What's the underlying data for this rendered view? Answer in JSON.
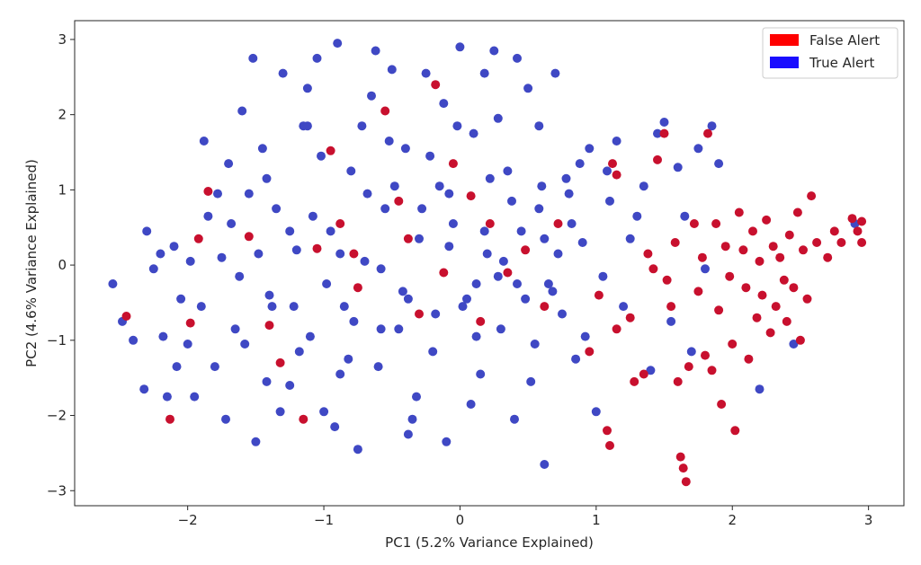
{
  "chart_data": {
    "type": "scatter",
    "title": "",
    "xlabel": "PC1 (5.2% Variance Explained)",
    "ylabel": "PC2 (4.6% Variance Explained)",
    "xlim": [
      -2.83,
      3.26
    ],
    "ylim": [
      -3.2,
      3.25
    ],
    "xticks": [
      -2,
      -1,
      0,
      1,
      2,
      3
    ],
    "yticks": [
      -3,
      -2,
      -1,
      0,
      1,
      2,
      3
    ],
    "xtick_labels": [
      "−2",
      "−1",
      "0",
      "1",
      "2",
      "3"
    ],
    "ytick_labels": [
      "−3",
      "−2",
      "−1",
      "0",
      "1",
      "2",
      "3"
    ],
    "grid": false,
    "legend_position": "top-right",
    "series": [
      {
        "name": "False Alert",
        "legend_color": "#ff0000",
        "point_color": "#c8102e",
        "points": [
          [
            -2.45,
            -0.68
          ],
          [
            -2.13,
            -2.05
          ],
          [
            -1.98,
            -0.77
          ],
          [
            -1.92,
            0.35
          ],
          [
            -1.85,
            0.98
          ],
          [
            -1.55,
            0.38
          ],
          [
            -1.4,
            -0.8
          ],
          [
            -1.32,
            -1.3
          ],
          [
            -1.15,
            -2.05
          ],
          [
            -1.05,
            0.22
          ],
          [
            -0.95,
            1.52
          ],
          [
            -0.88,
            0.55
          ],
          [
            -0.78,
            0.15
          ],
          [
            -0.75,
            -0.3
          ],
          [
            -0.55,
            2.05
          ],
          [
            -0.45,
            0.85
          ],
          [
            -0.38,
            0.35
          ],
          [
            -0.3,
            -0.65
          ],
          [
            -0.18,
            2.4
          ],
          [
            -0.12,
            -0.1
          ],
          [
            -0.05,
            1.35
          ],
          [
            0.08,
            0.92
          ],
          [
            0.15,
            -0.75
          ],
          [
            0.22,
            0.55
          ],
          [
            0.35,
            -0.1
          ],
          [
            0.48,
            0.2
          ],
          [
            0.62,
            -0.55
          ],
          [
            0.72,
            0.55
          ],
          [
            0.95,
            -1.15
          ],
          [
            1.02,
            -0.4
          ],
          [
            1.08,
            -2.2
          ],
          [
            1.1,
            -2.4
          ],
          [
            1.12,
            1.35
          ],
          [
            1.15,
            1.2
          ],
          [
            1.15,
            -0.85
          ],
          [
            1.25,
            -0.7
          ],
          [
            1.28,
            -1.55
          ],
          [
            1.35,
            -1.45
          ],
          [
            1.38,
            0.15
          ],
          [
            1.42,
            -0.05
          ],
          [
            1.45,
            1.4
          ],
          [
            1.5,
            1.75
          ],
          [
            1.52,
            -0.2
          ],
          [
            1.55,
            -0.55
          ],
          [
            1.58,
            0.3
          ],
          [
            1.6,
            -1.55
          ],
          [
            1.62,
            -2.55
          ],
          [
            1.64,
            -2.7
          ],
          [
            1.66,
            -2.88
          ],
          [
            1.68,
            -1.35
          ],
          [
            1.72,
            0.55
          ],
          [
            1.75,
            -0.35
          ],
          [
            1.78,
            0.1
          ],
          [
            1.8,
            -1.2
          ],
          [
            1.82,
            1.75
          ],
          [
            1.85,
            -1.4
          ],
          [
            1.88,
            0.55
          ],
          [
            1.9,
            -0.6
          ],
          [
            1.92,
            -1.85
          ],
          [
            1.95,
            0.25
          ],
          [
            1.98,
            -0.15
          ],
          [
            2.0,
            -1.05
          ],
          [
            2.02,
            -2.2
          ],
          [
            2.05,
            0.7
          ],
          [
            2.08,
            0.2
          ],
          [
            2.1,
            -0.3
          ],
          [
            2.12,
            -1.25
          ],
          [
            2.15,
            0.45
          ],
          [
            2.18,
            -0.7
          ],
          [
            2.2,
            0.05
          ],
          [
            2.22,
            -0.4
          ],
          [
            2.25,
            0.6
          ],
          [
            2.28,
            -0.9
          ],
          [
            2.3,
            0.25
          ],
          [
            2.32,
            -0.55
          ],
          [
            2.35,
            0.1
          ],
          [
            2.38,
            -0.2
          ],
          [
            2.4,
            -0.75
          ],
          [
            2.42,
            0.4
          ],
          [
            2.45,
            -0.3
          ],
          [
            2.48,
            0.7
          ],
          [
            2.5,
            -1.0
          ],
          [
            2.52,
            0.2
          ],
          [
            2.55,
            -0.45
          ],
          [
            2.58,
            0.92
          ],
          [
            2.62,
            0.3
          ],
          [
            2.7,
            0.1
          ],
          [
            2.75,
            0.45
          ],
          [
            2.8,
            0.3
          ],
          [
            2.88,
            0.62
          ],
          [
            2.92,
            0.45
          ],
          [
            2.95,
            0.58
          ],
          [
            2.95,
            0.3
          ]
        ]
      },
      {
        "name": "True Alert",
        "legend_color": "#1a0dff",
        "point_color": "#3f48c4",
        "points": [
          [
            -2.55,
            -0.25
          ],
          [
            -2.48,
            -0.75
          ],
          [
            -2.4,
            -1.0
          ],
          [
            -2.32,
            -1.65
          ],
          [
            -2.25,
            -0.05
          ],
          [
            -2.2,
            0.15
          ],
          [
            -2.15,
            -1.75
          ],
          [
            -2.1,
            0.25
          ],
          [
            -2.05,
            -0.45
          ],
          [
            -2.0,
            -1.05
          ],
          [
            -1.95,
            -1.75
          ],
          [
            -1.9,
            -0.55
          ],
          [
            -1.85,
            0.65
          ],
          [
            -1.8,
            -1.35
          ],
          [
            -1.75,
            0.1
          ],
          [
            -1.7,
            1.35
          ],
          [
            -1.65,
            -0.85
          ],
          [
            -1.6,
            2.05
          ],
          [
            -1.55,
            0.95
          ],
          [
            -1.5,
            -2.35
          ],
          [
            -1.45,
            1.55
          ],
          [
            -1.4,
            -0.4
          ],
          [
            -1.35,
            0.75
          ],
          [
            -1.3,
            2.55
          ],
          [
            -1.25,
            -1.6
          ],
          [
            -1.2,
            0.2
          ],
          [
            -1.15,
            1.85
          ],
          [
            -1.1,
            -0.95
          ],
          [
            -1.05,
            2.75
          ],
          [
            -1.0,
            -1.95
          ],
          [
            -0.95,
            0.45
          ],
          [
            -0.9,
            2.95
          ],
          [
            -0.85,
            -0.55
          ],
          [
            -0.8,
            1.25
          ],
          [
            -0.75,
            -2.45
          ],
          [
            -0.7,
            0.05
          ],
          [
            -0.65,
            2.25
          ],
          [
            -0.6,
            -1.35
          ],
          [
            -0.55,
            0.75
          ],
          [
            -0.5,
            2.6
          ],
          [
            -0.45,
            -0.85
          ],
          [
            -0.4,
            1.55
          ],
          [
            -0.35,
            -2.05
          ],
          [
            -0.3,
            0.35
          ],
          [
            -0.25,
            2.55
          ],
          [
            -0.2,
            -1.15
          ],
          [
            -0.15,
            1.05
          ],
          [
            -0.1,
            -2.35
          ],
          [
            -0.05,
            0.55
          ],
          [
            0.0,
            2.9
          ],
          [
            0.05,
            -0.45
          ],
          [
            0.1,
            1.75
          ],
          [
            0.15,
            -1.45
          ],
          [
            0.2,
            0.15
          ],
          [
            0.25,
            2.85
          ],
          [
            0.3,
            -0.85
          ],
          [
            0.35,
            1.25
          ],
          [
            0.4,
            -2.05
          ],
          [
            0.45,
            0.45
          ],
          [
            0.5,
            2.35
          ],
          [
            0.55,
            -1.05
          ],
          [
            0.6,
            1.05
          ],
          [
            0.62,
            -2.65
          ],
          [
            0.65,
            -0.25
          ],
          [
            0.7,
            2.55
          ],
          [
            0.75,
            -0.65
          ],
          [
            0.8,
            0.95
          ],
          [
            0.85,
            -1.25
          ],
          [
            0.9,
            0.3
          ],
          [
            0.95,
            1.55
          ],
          [
            1.0,
            -1.95
          ],
          [
            1.05,
            -0.15
          ],
          [
            1.1,
            0.85
          ],
          [
            1.15,
            1.65
          ],
          [
            1.2,
            -0.55
          ],
          [
            1.25,
            0.35
          ],
          [
            1.3,
            0.65
          ],
          [
            1.35,
            1.05
          ],
          [
            1.4,
            -1.4
          ],
          [
            1.45,
            1.75
          ],
          [
            1.5,
            1.9
          ],
          [
            1.55,
            -0.75
          ],
          [
            1.6,
            1.3
          ],
          [
            1.65,
            0.65
          ],
          [
            1.7,
            -1.15
          ],
          [
            1.75,
            1.55
          ],
          [
            1.8,
            -0.05
          ],
          [
            1.85,
            1.85
          ],
          [
            1.9,
            1.35
          ],
          [
            2.2,
            -1.65
          ],
          [
            2.45,
            -1.05
          ],
          [
            2.9,
            0.55
          ],
          [
            -1.25,
            0.45
          ],
          [
            -0.98,
            -0.25
          ],
          [
            -0.72,
            1.85
          ],
          [
            -0.42,
            -0.35
          ],
          [
            -0.22,
            1.45
          ],
          [
            0.12,
            -0.95
          ],
          [
            0.38,
            0.85
          ],
          [
            0.68,
            -0.35
          ],
          [
            -1.62,
            -0.15
          ],
          [
            -1.42,
            1.15
          ],
          [
            -1.18,
            -1.15
          ],
          [
            -0.88,
            -1.45
          ],
          [
            -0.58,
            -0.05
          ],
          [
            -0.32,
            -1.75
          ],
          [
            -0.08,
            0.25
          ],
          [
            0.28,
            1.95
          ],
          [
            0.52,
            -1.55
          ],
          [
            0.82,
            0.55
          ],
          [
            -2.3,
            0.45
          ],
          [
            -2.08,
            -1.35
          ],
          [
            -1.88,
            1.65
          ],
          [
            -1.72,
            -2.05
          ],
          [
            -1.52,
            2.75
          ],
          [
            -1.32,
            -1.95
          ],
          [
            -1.12,
            2.35
          ],
          [
            -0.92,
            -2.15
          ],
          [
            -0.62,
            2.85
          ],
          [
            -0.38,
            -2.25
          ],
          [
            -0.12,
            2.15
          ],
          [
            0.18,
            2.55
          ],
          [
            0.42,
            2.75
          ],
          [
            0.58,
            1.85
          ],
          [
            0.88,
            1.35
          ],
          [
            1.08,
            1.25
          ],
          [
            -1.48,
            0.15
          ],
          [
            -1.08,
            0.65
          ],
          [
            -0.78,
            -0.75
          ],
          [
            -0.48,
            1.05
          ],
          [
            -0.28,
            0.75
          ],
          [
            0.02,
            -0.55
          ],
          [
            0.32,
            0.05
          ],
          [
            0.62,
            0.35
          ],
          [
            -1.68,
            0.55
          ],
          [
            -1.38,
            -0.55
          ],
          [
            -0.18,
            -0.65
          ],
          [
            0.22,
            1.15
          ],
          [
            0.48,
            -0.45
          ],
          [
            0.78,
            1.15
          ],
          [
            -2.18,
            -0.95
          ],
          [
            -1.98,
            0.05
          ],
          [
            -1.78,
            0.95
          ],
          [
            -1.58,
            -1.05
          ],
          [
            -1.02,
            1.45
          ],
          [
            -0.82,
            -1.25
          ],
          [
            -0.52,
            1.65
          ],
          [
            -0.02,
            1.85
          ],
          [
            0.08,
            -1.85
          ],
          [
            0.28,
            -0.15
          ],
          [
            0.58,
            0.75
          ],
          [
            0.92,
            -0.95
          ],
          [
            -1.22,
            -0.55
          ],
          [
            -0.68,
            0.95
          ],
          [
            -0.38,
            -0.45
          ],
          [
            0.18,
            0.45
          ],
          [
            0.42,
            -0.25
          ],
          [
            0.72,
            0.15
          ],
          [
            -0.88,
            0.15
          ],
          [
            -0.58,
            -0.85
          ],
          [
            -0.08,
            0.95
          ],
          [
            0.12,
            -0.25
          ],
          [
            -1.42,
            -1.55
          ],
          [
            -1.12,
            1.85
          ]
        ]
      }
    ]
  }
}
